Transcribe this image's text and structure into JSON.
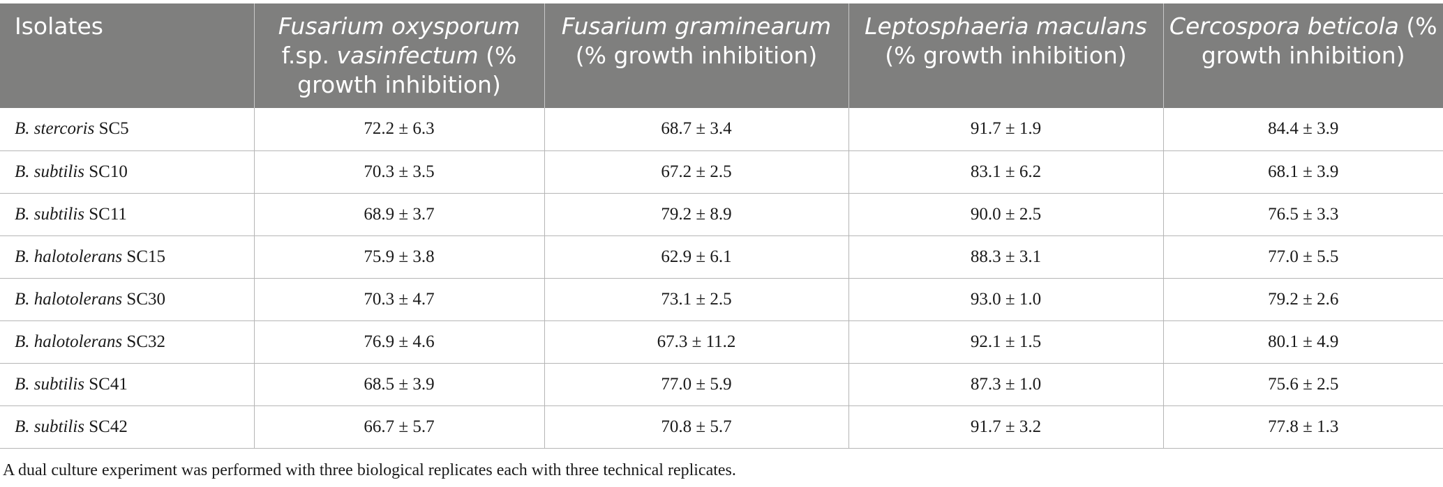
{
  "headers": {
    "isolates": "Isolates",
    "col1": {
      "italic": "Fusarium oxysporum",
      "mid": "f.sp. ",
      "italic2": "vasinfectum",
      "rest": " (% growth inhibition)"
    },
    "col2": {
      "italic": "Fusarium graminearum",
      "rest": " (% growth inhibition)"
    },
    "col3": {
      "italic": "Leptosphaeria maculans",
      "rest": " (% growth inhibition)"
    },
    "col4": {
      "italic": "Cercospora beticola",
      "rest": " (% growth inhibition)"
    }
  },
  "rows": [
    {
      "species": "B. stercoris",
      "strain": " SC5",
      "values": [
        "72.2 ± 6.3",
        "68.7 ± 3.4",
        "91.7 ± 1.9",
        "84.4 ± 3.9"
      ]
    },
    {
      "species": "B. subtilis",
      "strain": " SC10",
      "values": [
        "70.3 ± 3.5",
        "67.2 ± 2.5",
        "83.1 ± 6.2",
        "68.1 ± 3.9"
      ]
    },
    {
      "species": "B. subtilis",
      "strain": " SC11",
      "values": [
        "68.9 ± 3.7",
        "79.2 ± 8.9",
        "90.0 ± 2.5",
        "76.5 ± 3.3"
      ]
    },
    {
      "species": "B. halotolerans",
      "strain": " SC15",
      "values": [
        "75.9 ± 3.8",
        "62.9 ± 6.1",
        "88.3 ± 3.1",
        "77.0 ± 5.5"
      ]
    },
    {
      "species": "B. halotolerans",
      "strain": " SC30",
      "values": [
        "70.3 ± 4.7",
        "73.1 ± 2.5",
        "93.0 ± 1.0",
        "79.2 ± 2.6"
      ]
    },
    {
      "species": "B. halotolerans",
      "strain": " SC32",
      "values": [
        "76.9 ± 4.6",
        "67.3 ± 11.2",
        "92.1 ± 1.5",
        "80.1 ± 4.9"
      ]
    },
    {
      "species": "B. subtilis",
      "strain": " SC41",
      "values": [
        "68.5 ± 3.9",
        "77.0 ± 5.9",
        "87.3 ± 1.0",
        "75.6 ± 2.5"
      ]
    },
    {
      "species": "B. subtilis",
      "strain": " SC42",
      "values": [
        "66.7 ± 5.7",
        "70.8 ± 5.7",
        "91.7 ± 3.2",
        "77.8 ± 1.3"
      ]
    }
  ],
  "footnote": "A dual culture experiment was performed with three biological replicates each with three technical replicates.",
  "colors": {
    "header_bg": "#7f7f7e",
    "header_text": "#ffffff",
    "body_text": "#1a1a1a",
    "grid_line": "#b5b5b5"
  }
}
